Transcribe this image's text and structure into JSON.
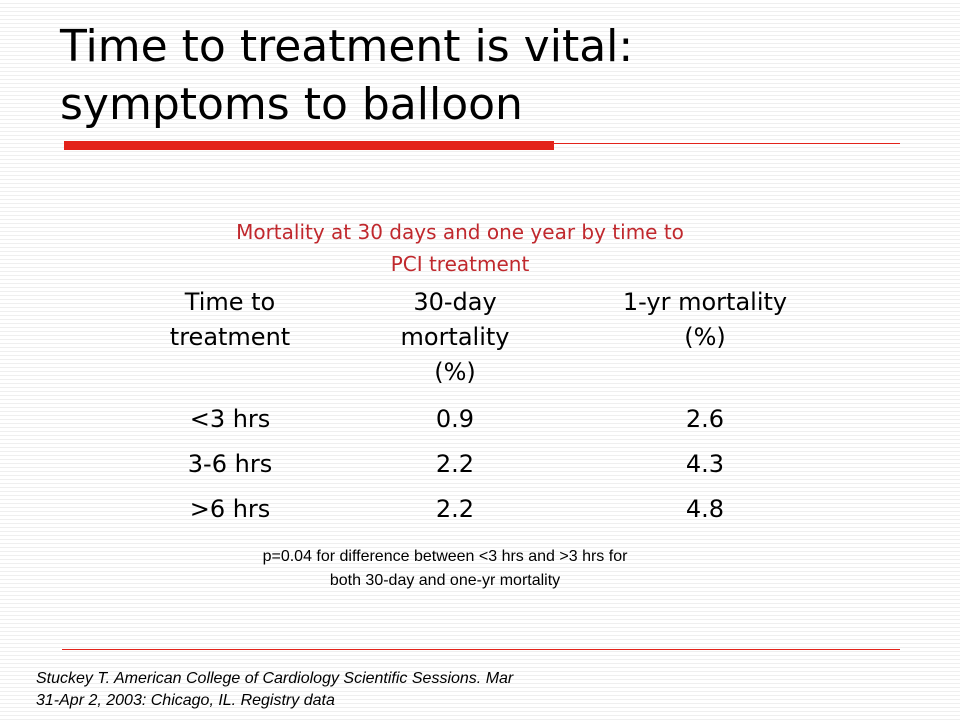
{
  "slide": {
    "title_lines": [
      "Time to treatment is vital:",
      "symptoms to balloon"
    ],
    "caption_lines": [
      "Mortality at 30 days and one year by time to",
      "PCI treatment"
    ],
    "table": {
      "headers": [
        [
          "Time to",
          "treatment"
        ],
        [
          "30-day",
          "mortality",
          "(%)"
        ],
        [
          "1-yr mortality",
          "(%)"
        ]
      ],
      "rows": [
        [
          "<3 hrs",
          "0.9",
          "2.6"
        ],
        [
          "3-6 hrs",
          "2.2",
          "4.3"
        ],
        [
          ">6 hrs",
          "2.2",
          "4.8"
        ]
      ]
    },
    "footnote_lines": [
      "p=0.04 for difference between <3 hrs and >3 hrs for",
      "both 30-day and one-yr mortality"
    ],
    "citation_lines": [
      "Stuckey T. American College of Cardiology Scientific Sessions. Mar",
      "31-Apr 2, 2003: Chicago, IL. Registry data"
    ]
  },
  "colors": {
    "accent": "#e3231b",
    "caption": "#c0282d",
    "text": "#000000"
  }
}
